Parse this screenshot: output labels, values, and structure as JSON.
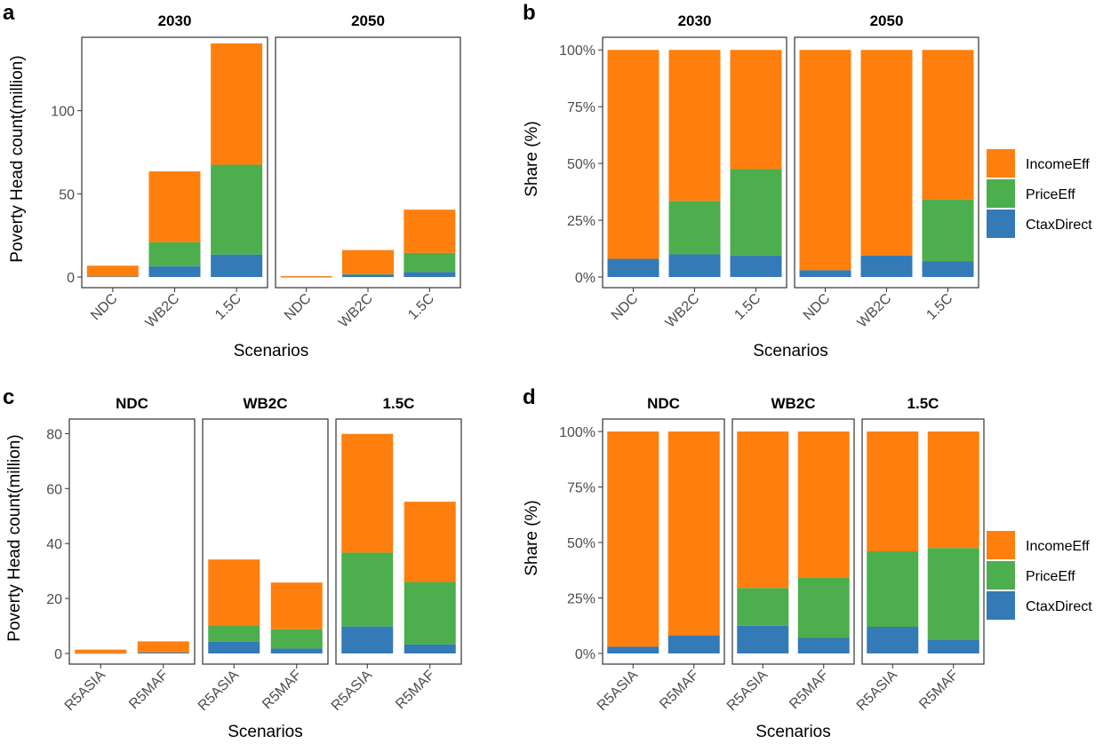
{
  "colors": {
    "IncomeEff": "#ff7f0e",
    "PriceEff": "#4cae4c",
    "CtaxDirect": "#337ab7"
  },
  "chart_data": [
    {
      "panel": "a",
      "type": "bar",
      "stacked": true,
      "facets": [
        "2030",
        "2050"
      ],
      "categories": [
        "NDC",
        "WB2C",
        "1.5C"
      ],
      "ylabel": "Poverty Head count(million)",
      "xlabel": "Scenarios",
      "ylim": [
        0,
        142
      ],
      "yticks": [
        0,
        50,
        100
      ],
      "ytick_labels": [
        "0",
        "50",
        "100"
      ],
      "series": [
        {
          "name": "CtaxDirect",
          "values": [
            [
              0.3,
              6.5,
              13.5
            ],
            [
              0.1,
              1.5,
              3.0
            ]
          ]
        },
        {
          "name": "PriceEff",
          "values": [
            [
              0.0,
              14.5,
              54.0
            ],
            [
              0.0,
              0.2,
              11.5
            ]
          ]
        },
        {
          "name": "IncomeEff",
          "values": [
            [
              6.5,
              42.5,
              73.0
            ],
            [
              0.5,
              14.5,
              26.0
            ]
          ]
        }
      ]
    },
    {
      "panel": "b",
      "type": "bar",
      "stacked": true,
      "facets": [
        "2030",
        "2050"
      ],
      "categories": [
        "NDC",
        "WB2C",
        "1.5C"
      ],
      "ylabel": "Share (%)",
      "xlabel": "Scenarios",
      "ylim": [
        0,
        1.04
      ],
      "yticks": [
        0,
        0.25,
        0.5,
        0.75,
        1.0
      ],
      "ytick_labels": [
        "0%",
        "25%",
        "50%",
        "75%",
        "100%"
      ],
      "legend": {
        "position": "right",
        "entries": [
          "IncomeEff",
          "PriceEff",
          "CtaxDirect"
        ]
      },
      "series": [
        {
          "name": "CtaxDirect",
          "values": [
            [
              0.08,
              0.1,
              0.095
            ],
            [
              0.03,
              0.095,
              0.07
            ]
          ]
        },
        {
          "name": "PriceEff",
          "values": [
            [
              0.0,
              0.235,
              0.38
            ],
            [
              0.0,
              0.0,
              0.27
            ]
          ]
        },
        {
          "name": "IncomeEff",
          "values": [
            [
              0.92,
              0.665,
              0.525
            ],
            [
              0.97,
              0.905,
              0.66
            ]
          ]
        }
      ]
    },
    {
      "panel": "c",
      "type": "bar",
      "stacked": true,
      "facets": [
        "NDC",
        "WB2C",
        "1.5C"
      ],
      "categories": [
        "R5ASIA",
        "R5MAF"
      ],
      "ylabel": "Poverty Head count(million)",
      "xlabel": "Scenarios",
      "ylim": [
        0,
        84
      ],
      "yticks": [
        0,
        20,
        40,
        60,
        80
      ],
      "ytick_labels": [
        "0",
        "20",
        "40",
        "60",
        "80"
      ],
      "series": [
        {
          "name": "CtaxDirect",
          "values": [
            [
              0.1,
              0.4
            ],
            [
              4.3,
              1.8
            ],
            [
              9.8,
              3.3
            ]
          ]
        },
        {
          "name": "PriceEff",
          "values": [
            [
              0.0,
              0.0
            ],
            [
              5.9,
              7.0
            ],
            [
              26.9,
              22.7
            ]
          ]
        },
        {
          "name": "IncomeEff",
          "values": [
            [
              1.3,
              4.0
            ],
            [
              24.0,
              17.0
            ],
            [
              43.2,
              29.2
            ]
          ]
        }
      ]
    },
    {
      "panel": "d",
      "type": "bar",
      "stacked": true,
      "facets": [
        "NDC",
        "WB2C",
        "1.5C"
      ],
      "categories": [
        "R5ASIA",
        "R5MAF"
      ],
      "ylabel": "Share (%)",
      "xlabel": "Scenarios",
      "ylim": [
        0,
        1.04
      ],
      "yticks": [
        0,
        0.25,
        0.5,
        0.75,
        1.0
      ],
      "ytick_labels": [
        "0%",
        "25%",
        "50%",
        "75%",
        "100%"
      ],
      "legend": {
        "position": "right",
        "entries": [
          "IncomeEff",
          "PriceEff",
          "CtaxDirect"
        ]
      },
      "series": [
        {
          "name": "CtaxDirect",
          "values": [
            [
              0.03,
              0.08
            ],
            [
              0.125,
              0.07
            ],
            [
              0.12,
              0.06
            ]
          ]
        },
        {
          "name": "PriceEff",
          "values": [
            [
              0.0,
              0.0
            ],
            [
              0.17,
              0.27
            ],
            [
              0.34,
              0.415
            ]
          ]
        },
        {
          "name": "IncomeEff",
          "values": [
            [
              0.97,
              0.92
            ],
            [
              0.705,
              0.66
            ],
            [
              0.54,
              0.525
            ]
          ]
        }
      ]
    }
  ]
}
